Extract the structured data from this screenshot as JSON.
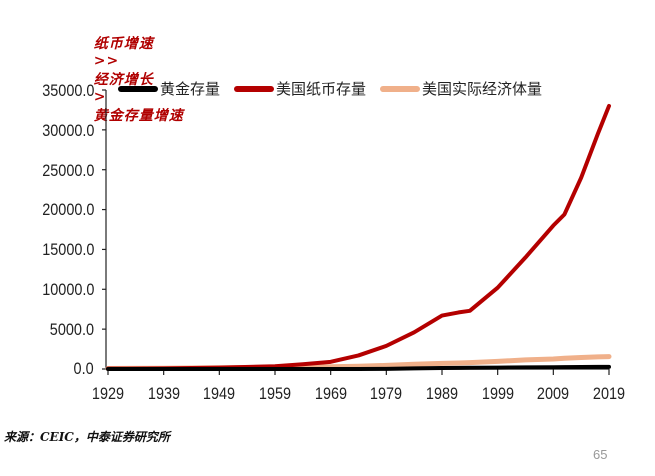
{
  "header": {
    "part1": "纸币增速",
    "sep1": ">>",
    "part2": "经济增长",
    "sep2": ">",
    "part3": "黄金存量增速"
  },
  "source": "来源：CEIC，中泰证券研究所",
  "page_number": "65",
  "colors": {
    "gold_stock": "#000000",
    "us_currency": "#b40000",
    "us_real_economy": "#f0b08a",
    "header": "#b00000"
  },
  "chart_data": {
    "type": "line",
    "title": "纸币增速 >> 经济增长 > 黄金存量增速",
    "xlabel": "",
    "ylabel": "",
    "ylim": [
      0,
      35000
    ],
    "yticks": [
      "35000.0",
      "30000.0",
      "25000.0",
      "20000.0",
      "15000.0",
      "10000.0",
      "5000.0",
      "0.0"
    ],
    "xticks": [
      "1929",
      "1939",
      "1949",
      "1959",
      "1969",
      "1979",
      "1989",
      "1999",
      "2009",
      "2019"
    ],
    "legend_position": "top",
    "grid": false,
    "x": [
      1929,
      1939,
      1949,
      1959,
      1964,
      1969,
      1974,
      1979,
      1984,
      1989,
      1992,
      1994,
      1999,
      2004,
      2009,
      2011,
      2014,
      2017,
      2019
    ],
    "series": [
      {
        "name": "黄金存量",
        "values": [
          0,
          0,
          0,
          0,
          0,
          0,
          0,
          20,
          80,
          120,
          140,
          150,
          180,
          200,
          220,
          230,
          250,
          260,
          270
        ]
      },
      {
        "name": "美国纸币存量",
        "values": [
          40,
          80,
          170,
          340,
          600,
          900,
          1700,
          2900,
          4600,
          6700,
          7100,
          7300,
          10200,
          14000,
          18000,
          19400,
          24000,
          29500,
          33000
        ]
      },
      {
        "name": "美国实际经济体量",
        "values": [
          60,
          100,
          150,
          200,
          230,
          280,
          350,
          450,
          600,
          700,
          760,
          800,
          950,
          1150,
          1250,
          1350,
          1450,
          1520,
          1560
        ]
      }
    ]
  }
}
